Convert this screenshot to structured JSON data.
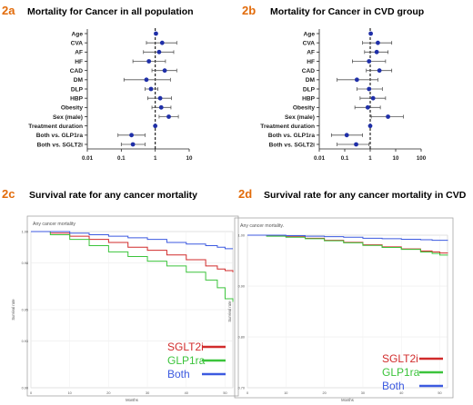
{
  "panels": {
    "a": {
      "tag": "2a",
      "title": "Mortality for Cancer in all population"
    },
    "b": {
      "tag": "2b",
      "title": "Mortality for Cancer in CVD group"
    },
    "c": {
      "tag": "2c",
      "title": "Survival rate for any cancer mortality"
    },
    "d": {
      "tag": "2d",
      "title": "Survival rate for any cancer mortality in CVD"
    }
  },
  "colors": {
    "tag": "#e26b0a",
    "point": "#1f2fa8",
    "sglt2i": "#d12b2b",
    "glp1ra": "#3cc43c",
    "both": "#3c5ae0"
  },
  "chart_data": [
    {
      "id": "2a",
      "type": "scatter",
      "title": "Mortality for Cancer in all population",
      "x_scale": "log",
      "xlim": [
        0.01,
        10
      ],
      "xticks": [
        "0.01",
        "0.1",
        "1",
        "10"
      ],
      "reference_line": 1,
      "categories": [
        "Age",
        "CVA",
        "AF",
        "HF",
        "CAD",
        "DM",
        "DLP",
        "HBP",
        "Obesity",
        "Sex (male)",
        "Treatment duration",
        "Both vs. GLP1ra",
        "Both vs. SGLT2i"
      ],
      "estimate": [
        1.05,
        1.6,
        1.3,
        0.65,
        1.9,
        0.55,
        0.75,
        1.4,
        1.5,
        2.5,
        1.0,
        0.2,
        0.22
      ],
      "lower": [
        1.0,
        0.55,
        0.45,
        0.22,
        0.8,
        0.12,
        0.5,
        0.6,
        0.8,
        1.3,
        0.98,
        0.08,
        0.1
      ],
      "upper": [
        1.1,
        4.3,
        3.5,
        2.0,
        4.3,
        2.8,
        1.2,
        3.0,
        2.9,
        4.8,
        1.02,
        0.5,
        0.5
      ]
    },
    {
      "id": "2b",
      "type": "scatter",
      "title": "Mortality for Cancer in CVD group",
      "x_scale": "log",
      "xlim": [
        0.01,
        100
      ],
      "xticks": [
        "0.01",
        "0.1",
        "1",
        "10",
        "100"
      ],
      "reference_line": 1,
      "categories": [
        "Age",
        "CVA",
        "AF",
        "HF",
        "CAD",
        "DM",
        "DLP",
        "HBP",
        "Obesity",
        "Sex (male)",
        "Treatment duration",
        "Both vs. GLP1ra",
        "Both vs. SGLT2i"
      ],
      "estimate": [
        1.05,
        2.0,
        1.8,
        0.9,
        2.3,
        0.3,
        0.9,
        1.3,
        0.8,
        5.0,
        1.0,
        0.12,
        0.28
      ],
      "lower": [
        1.0,
        0.5,
        0.6,
        0.2,
        0.7,
        0.05,
        0.3,
        0.4,
        0.25,
        1.1,
        0.98,
        0.03,
        0.05
      ],
      "upper": [
        1.1,
        7.0,
        5.0,
        4.0,
        7.0,
        2.0,
        3.0,
        4.0,
        2.5,
        20,
        1.02,
        0.5,
        0.9
      ]
    },
    {
      "id": "2c",
      "type": "line",
      "title": "Any cancer mortality",
      "xlabel": "Months",
      "ylabel": "Survival rate",
      "xlim": [
        0,
        52
      ],
      "ylim": [
        0.9,
        1.0
      ],
      "xticks": [
        0,
        10,
        20,
        30,
        40,
        50
      ],
      "yticks": [
        "0.90",
        "0.93",
        "0.95",
        "0.98",
        "1.00"
      ],
      "x": [
        0,
        5,
        10,
        15,
        20,
        25,
        30,
        35,
        40,
        45,
        48,
        50,
        52
      ],
      "series": [
        {
          "name": "SGLT2i",
          "values": [
            1.0,
            0.999,
            0.997,
            0.995,
            0.993,
            0.99,
            0.988,
            0.985,
            0.982,
            0.978,
            0.976,
            0.975,
            0.974
          ]
        },
        {
          "name": "GLP1ra",
          "values": [
            1.0,
            0.998,
            0.995,
            0.991,
            0.987,
            0.984,
            0.981,
            0.978,
            0.974,
            0.969,
            0.964,
            0.957,
            0.955
          ]
        },
        {
          "name": "Both",
          "values": [
            1.0,
            1.0,
            0.999,
            0.998,
            0.997,
            0.996,
            0.995,
            0.993,
            0.992,
            0.991,
            0.99,
            0.989,
            0.989
          ]
        }
      ]
    },
    {
      "id": "2d",
      "type": "line",
      "title": "Any cancer mortality.",
      "xlabel": "Months",
      "ylabel": "Survival rate",
      "xlim": [
        0,
        52
      ],
      "ylim": [
        0.7,
        1.0
      ],
      "xticks": [
        0,
        10,
        20,
        30,
        40,
        50
      ],
      "yticks": [
        "0.70",
        "0.80",
        "0.90",
        "1.00"
      ],
      "x": [
        0,
        5,
        10,
        15,
        20,
        25,
        30,
        35,
        40,
        45,
        48,
        50,
        52
      ],
      "series": [
        {
          "name": "SGLT2i",
          "values": [
            1.0,
            0.999,
            0.997,
            0.994,
            0.99,
            0.986,
            0.981,
            0.977,
            0.973,
            0.969,
            0.967,
            0.965,
            0.964
          ]
        },
        {
          "name": "GLP1ra",
          "values": [
            1.0,
            0.998,
            0.996,
            0.993,
            0.989,
            0.985,
            0.98,
            0.976,
            0.972,
            0.967,
            0.964,
            0.961,
            0.96
          ]
        },
        {
          "name": "Both",
          "values": [
            1.0,
            1.0,
            0.999,
            0.998,
            0.997,
            0.996,
            0.994,
            0.993,
            0.992,
            0.991,
            0.99,
            0.99,
            0.989
          ]
        }
      ]
    }
  ]
}
